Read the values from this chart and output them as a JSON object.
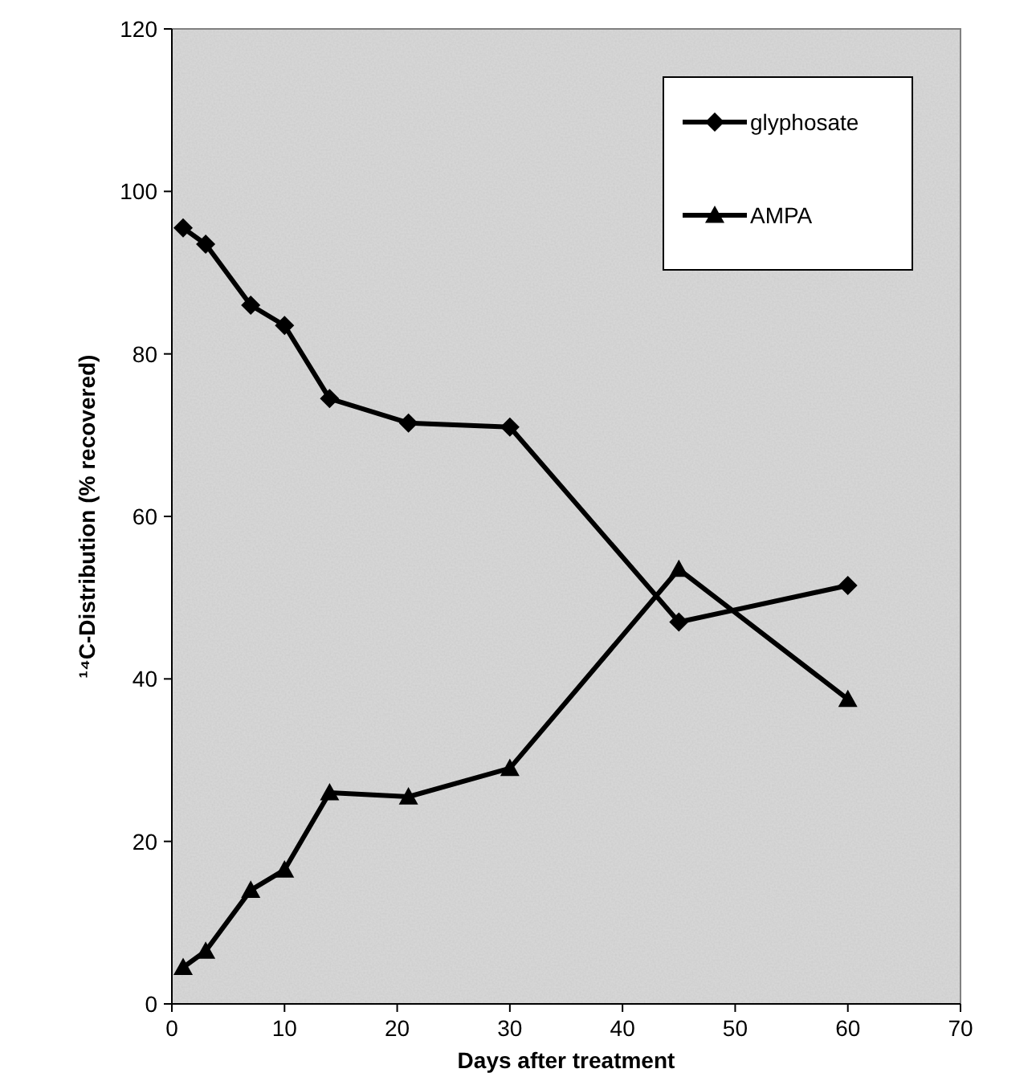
{
  "chart_data": {
    "type": "line",
    "xlabel": "Days after treatment",
    "ylabel": "¹⁴C-Distribution (% recovered)",
    "x": [
      1,
      3,
      7,
      10,
      14,
      21,
      30,
      45,
      60
    ],
    "series": [
      {
        "name": "glyphosate",
        "color": "#000000",
        "marker": "diamond",
        "values": [
          95.5,
          93.5,
          86,
          83.5,
          74.5,
          71.5,
          71,
          47,
          51.5
        ]
      },
      {
        "name": "AMPA",
        "color": "#000000",
        "marker": "triangle",
        "values": [
          4.5,
          6.5,
          14,
          16.5,
          26,
          25.5,
          29,
          53.5,
          37.5
        ]
      }
    ],
    "xlim": [
      0,
      70
    ],
    "xticks": [
      0,
      10,
      20,
      30,
      40,
      50,
      60,
      70
    ],
    "ylim": [
      0,
      120
    ],
    "yticks": [
      0,
      20,
      40,
      60,
      80,
      100,
      120
    ],
    "legend": "top right",
    "grid": false
  }
}
